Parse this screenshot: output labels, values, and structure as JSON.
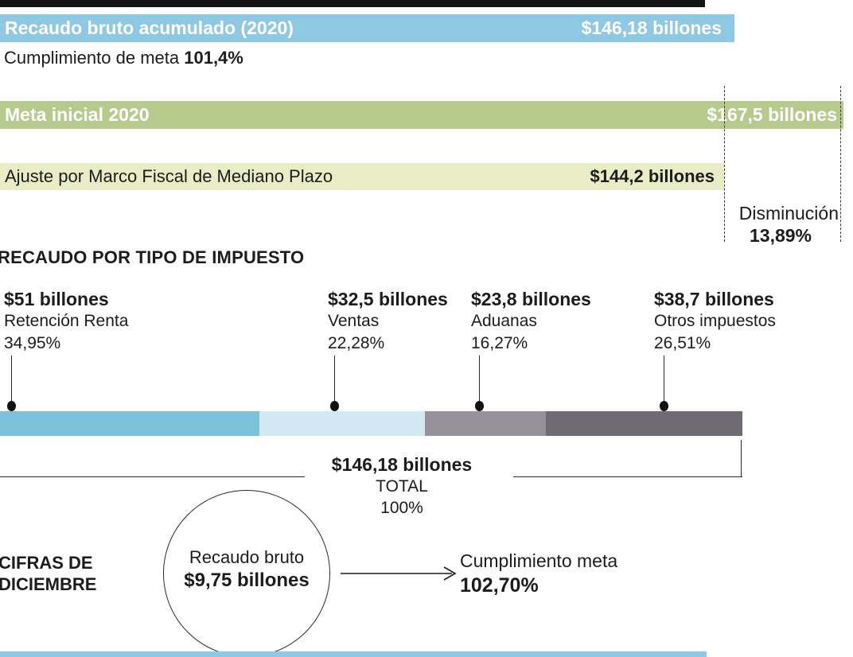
{
  "colors": {
    "top_strip": "#141414",
    "blue_bar": "#8fc8e2",
    "green_bar": "#b6ca8d",
    "pale_green_bar": "#e9edc5",
    "bottom_strip": "#8fc8e2",
    "text_dark": "#1c1c1c"
  },
  "summary": {
    "recaudo_bruto_label": "Recaudo bruto acumulado (2020)",
    "recaudo_bruto_value": "$146,18 billones",
    "cumplimiento_label": "Cumplimiento de meta",
    "cumplimiento_value": "101,4%",
    "meta_inicial_label": "Meta inicial 2020",
    "meta_inicial_value": "$167,5 billones",
    "ajuste_label": "Ajuste por Marco Fiscal de Mediano Plazo",
    "ajuste_value": "$144,2 billones",
    "disminucion_label": "Disminución",
    "disminucion_value": "13,89%"
  },
  "impuesto_section": {
    "title": "RECAUDO POR TIPO DE IMPUESTO",
    "total_value": "$146,18 billones",
    "total_label": "TOTAL",
    "total_percent": "100%"
  },
  "diciembre": {
    "title_line1": "CIFRAS DE",
    "title_line2": "DICIEMBRE",
    "circle_label": "Recaudo bruto",
    "circle_value": "$9,75 billones",
    "meta_label": "Cumplimiento meta",
    "meta_value": "102,70%"
  },
  "chart_data": [
    {
      "type": "bar",
      "title": "Recaudo bruto acumulado (2020) vs metas",
      "categories": [
        "Recaudo bruto acumulado (2020)",
        "Meta inicial 2020",
        "Ajuste por Marco Fiscal de Mediano Plazo"
      ],
      "values": [
        146.18,
        167.5,
        144.2
      ],
      "unit": "billones ($, COP)",
      "annotations": [
        "Cumplimiento de meta 101,4%",
        "Disminución 13,89%"
      ],
      "xlabel": "",
      "ylabel": "",
      "legend": "none"
    },
    {
      "type": "bar",
      "subtype": "stacked-horizontal",
      "title": "RECAUDO POR TIPO DE IMPUESTO",
      "segments": [
        {
          "name": "Retención Renta",
          "value": 51,
          "percent": 34.95,
          "value_label": "$51 billones",
          "percent_label": "34,95%",
          "color": "#7ec2da"
        },
        {
          "name": "Ventas",
          "value": 32.5,
          "percent": 22.28,
          "value_label": "$32,5 billones",
          "percent_label": "22,28%",
          "color": "#d3e8f2"
        },
        {
          "name": "Aduanas",
          "value": 23.8,
          "percent": 16.27,
          "value_label": "$23,8 billones",
          "percent_label": "16,27%",
          "color": "#95909a"
        },
        {
          "name": "Otros impuestos",
          "value": 38.7,
          "percent": 26.51,
          "value_label": "$38,7 billones",
          "percent_label": "26,51%",
          "color": "#6f6a73"
        }
      ],
      "total": {
        "value": 146.18,
        "percent": 100,
        "value_label": "$146,18 billones",
        "label": "TOTAL",
        "percent_label": "100%"
      },
      "unit": "billones ($, COP)"
    },
    {
      "type": "bar",
      "title": "Cifras de diciembre",
      "categories": [
        "Recaudo bruto diciembre"
      ],
      "values": [
        9.75
      ],
      "unit": "billones ($, COP)",
      "annotations": [
        "Cumplimiento meta 102,70%"
      ]
    }
  ]
}
